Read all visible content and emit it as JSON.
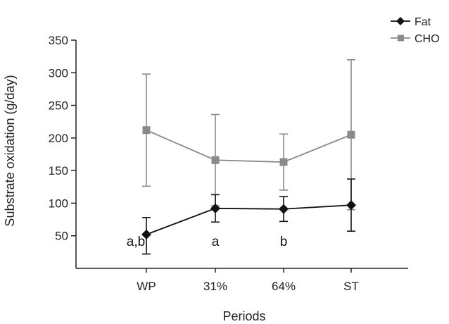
{
  "chart_data": {
    "type": "line",
    "title": "",
    "xlabel": "Periods",
    "ylabel": "Substrate oxidation (g/day)",
    "categories": [
      "WP",
      "31%",
      "64%",
      "ST"
    ],
    "ylim": [
      0,
      350
    ],
    "yticks": [
      50,
      100,
      150,
      200,
      250,
      300,
      350
    ],
    "grid": false,
    "legend_position": "top-right",
    "series": [
      {
        "name": "Fat",
        "color": "#111111",
        "marker": "diamond",
        "values": [
          52,
          92,
          91,
          97
        ],
        "error_upper": [
          78,
          113,
          110,
          137
        ],
        "error_lower": [
          22,
          71,
          72,
          57
        ]
      },
      {
        "name": "CHO",
        "color": "#8a8a8a",
        "marker": "square",
        "values": [
          212,
          166,
          163,
          205
        ],
        "error_upper": [
          298,
          236,
          206,
          320
        ],
        "error_lower": [
          126,
          96,
          120,
          90
        ]
      }
    ],
    "annotations": [
      {
        "category": "WP",
        "text": "a,b"
      },
      {
        "category": "31%",
        "text": "a"
      },
      {
        "category": "64%",
        "text": "b"
      }
    ]
  }
}
